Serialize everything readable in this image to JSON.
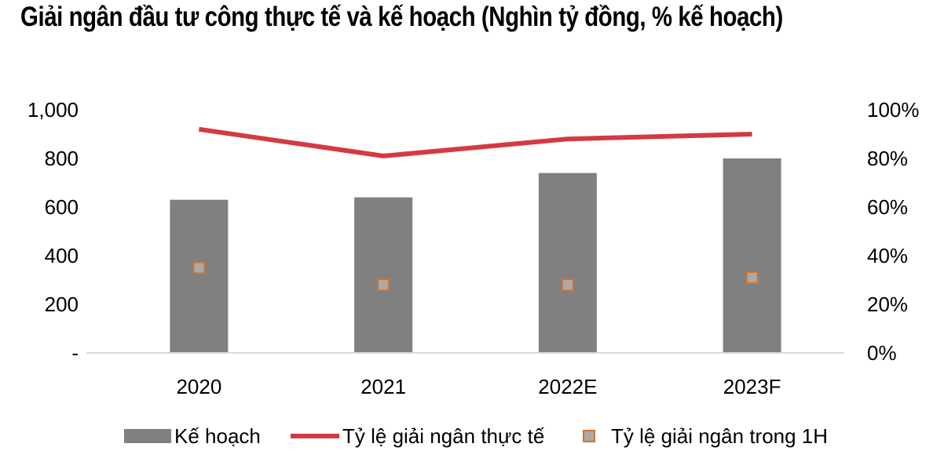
{
  "chart_data": {
    "type": "bar",
    "title": "Giải ngân đầu tư công thực tế và kế hoạch (Nghìn tỷ đồng, % kế hoạch)",
    "categories": [
      "2020",
      "2021",
      "2022E",
      "2023F"
    ],
    "y_left": {
      "ylim": [
        0,
        1000
      ],
      "ticks": [
        "-",
        "200",
        "400",
        "600",
        "800",
        "1,000"
      ]
    },
    "y_right": {
      "ylim": [
        0,
        100
      ],
      "ticks": [
        "0%",
        "20%",
        "40%",
        "60%",
        "80%",
        "100%"
      ]
    },
    "grid": false,
    "legend_position": "bottom",
    "series": [
      {
        "name": "Kế hoạch",
        "kind": "bar",
        "axis": "left",
        "color": "#808080",
        "values": [
          630,
          640,
          740,
          800
        ]
      },
      {
        "name": "Tỷ lệ giải ngân thực tế",
        "kind": "line",
        "axis": "right",
        "color": "#d43a44",
        "values": [
          92,
          81,
          88,
          90
        ]
      },
      {
        "name": "Tỷ lệ giải ngân trong 1H",
        "kind": "marker",
        "axis": "right",
        "color": "#aaaaaa",
        "edge_color": "#d4722a",
        "values": [
          35,
          28,
          28,
          31
        ]
      }
    ]
  }
}
